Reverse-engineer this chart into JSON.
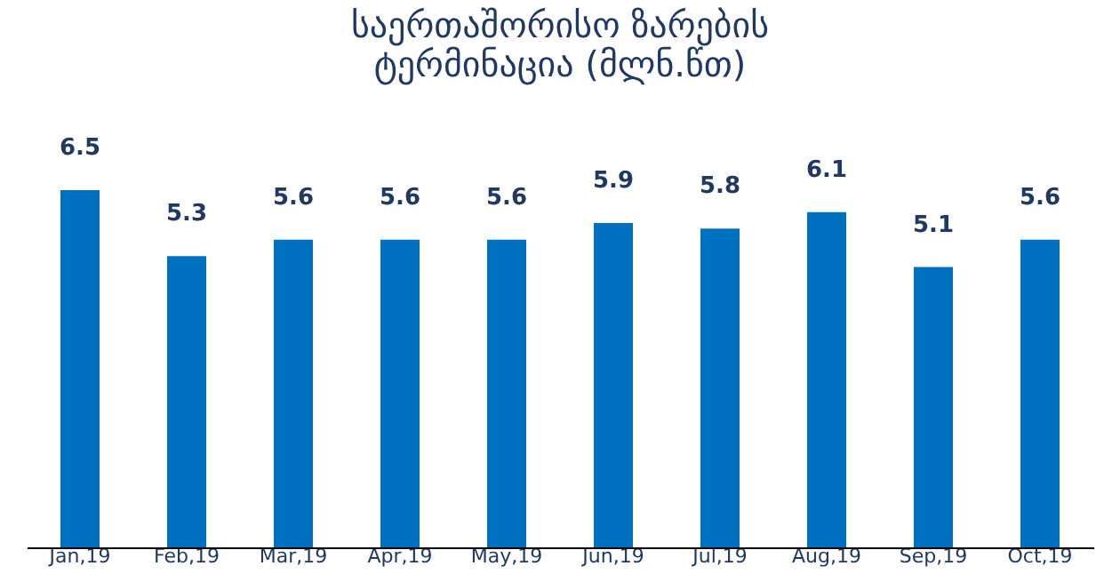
{
  "chart_data": {
    "type": "bar",
    "title": "საერთაშორისო ზარების ტერმინაცია (მლნ.წთ)",
    "categories": [
      "Jan,19",
      "Feb,19",
      "Mar,19",
      "Apr,19",
      "May,19",
      "Jun,19",
      "Jul,19",
      "Aug,19",
      "Sep,19",
      "Oct,19"
    ],
    "values": [
      6.5,
      5.3,
      5.6,
      5.6,
      5.6,
      5.9,
      5.8,
      6.1,
      5.1,
      5.6
    ],
    "color": "#0070c0",
    "data_labels": true,
    "grid": false
  }
}
